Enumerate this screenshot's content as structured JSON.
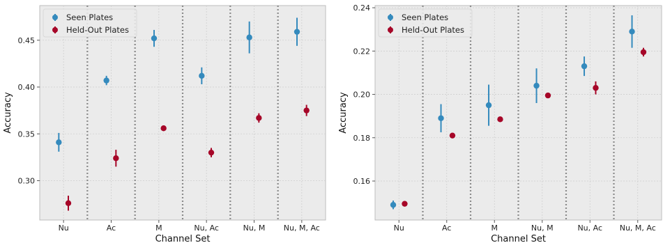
{
  "chart_data": [
    {
      "type": "scatter",
      "subtype": "errorbar",
      "title": "",
      "xlabel": "Channel Set",
      "ylabel": "Accuracy",
      "categories": [
        "Nu",
        "Ac",
        "M",
        "Nu, Ac",
        "Nu, M",
        "Nu, M, Ac"
      ],
      "ylim": [
        0.258,
        0.487
      ],
      "yticks": [
        0.3,
        0.35,
        0.4,
        0.45
      ],
      "ytick_labels": [
        "0.30",
        "0.35",
        "0.40",
        "0.45"
      ],
      "grid": true,
      "category_separators": "dotted",
      "legend": {
        "placement": "top-left"
      },
      "series": [
        {
          "name": "Seen Plates",
          "color": "#348abd",
          "values": [
            0.341,
            0.407,
            0.452,
            0.412,
            0.453,
            0.459
          ],
          "errors": [
            0.01,
            0.005,
            0.009,
            0.009,
            0.017,
            0.015
          ]
        },
        {
          "name": "Held-Out Plates",
          "color": "#a60628",
          "values": [
            0.276,
            0.324,
            0.356,
            0.33,
            0.367,
            0.375
          ],
          "errors": [
            0.008,
            0.009,
            0.003,
            0.005,
            0.005,
            0.006
          ]
        }
      ]
    },
    {
      "type": "scatter",
      "subtype": "errorbar",
      "title": "",
      "xlabel": "Channel Set",
      "ylabel": "Accuracy",
      "categories": [
        "Nu",
        "Ac",
        "M",
        "Nu, M",
        "Nu, Ac",
        "Nu, M, Ac"
      ],
      "ylim": [
        0.142,
        0.241
      ],
      "yticks": [
        0.16,
        0.18,
        0.2,
        0.22,
        0.24
      ],
      "ytick_labels": [
        "0.16",
        "0.18",
        "0.20",
        "0.22",
        "0.24"
      ],
      "grid": true,
      "category_separators": "dotted",
      "legend": {
        "placement": "top-left"
      },
      "series": [
        {
          "name": "Seen Plates",
          "color": "#348abd",
          "values": [
            0.149,
            0.189,
            0.195,
            0.204,
            0.213,
            0.229
          ],
          "errors": [
            0.002,
            0.0065,
            0.0095,
            0.008,
            0.0045,
            0.0075
          ]
        },
        {
          "name": "Held-Out Plates",
          "color": "#a60628",
          "values": [
            0.1495,
            0.181,
            0.1885,
            0.1995,
            0.203,
            0.2195
          ],
          "errors": [
            0.0005,
            0.0005,
            0.001,
            0.0005,
            0.003,
            0.002
          ]
        }
      ]
    }
  ]
}
